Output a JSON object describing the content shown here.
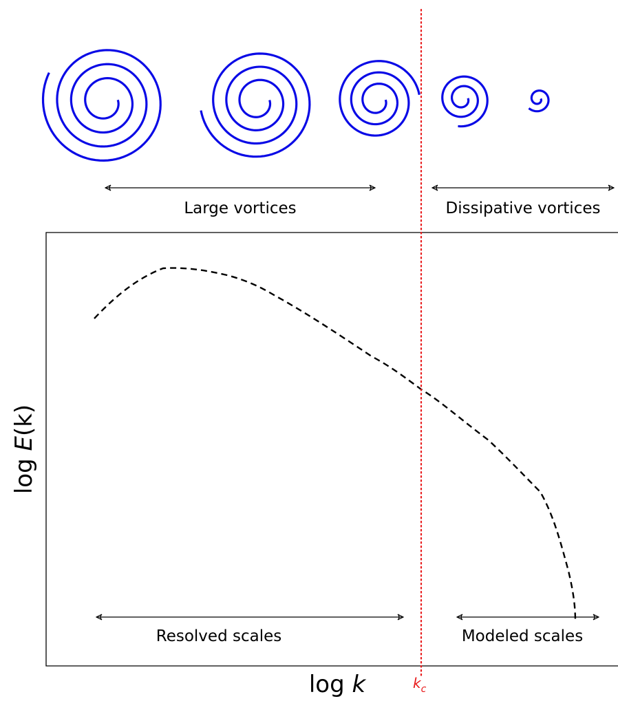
{
  "labels": {
    "large_vortices": "Large vortices",
    "dissipative_vortices": "Dissipative vortices",
    "resolved_scales": "Resolved scales",
    "modeled_scales": "Modeled scales"
  },
  "axes": {
    "x_prefix": "log ",
    "x_var": "k",
    "y_prefix": "log ",
    "y_var": "E",
    "y_args": "(k)"
  },
  "cutoff": {
    "label_main": "k",
    "label_sub": "c",
    "color": "#e8191a"
  },
  "colors": {
    "spiral": "#0a0ae6",
    "curve": "#000000",
    "frame": "#000000"
  },
  "icons": {
    "vortex": "spiral-icon"
  }
}
